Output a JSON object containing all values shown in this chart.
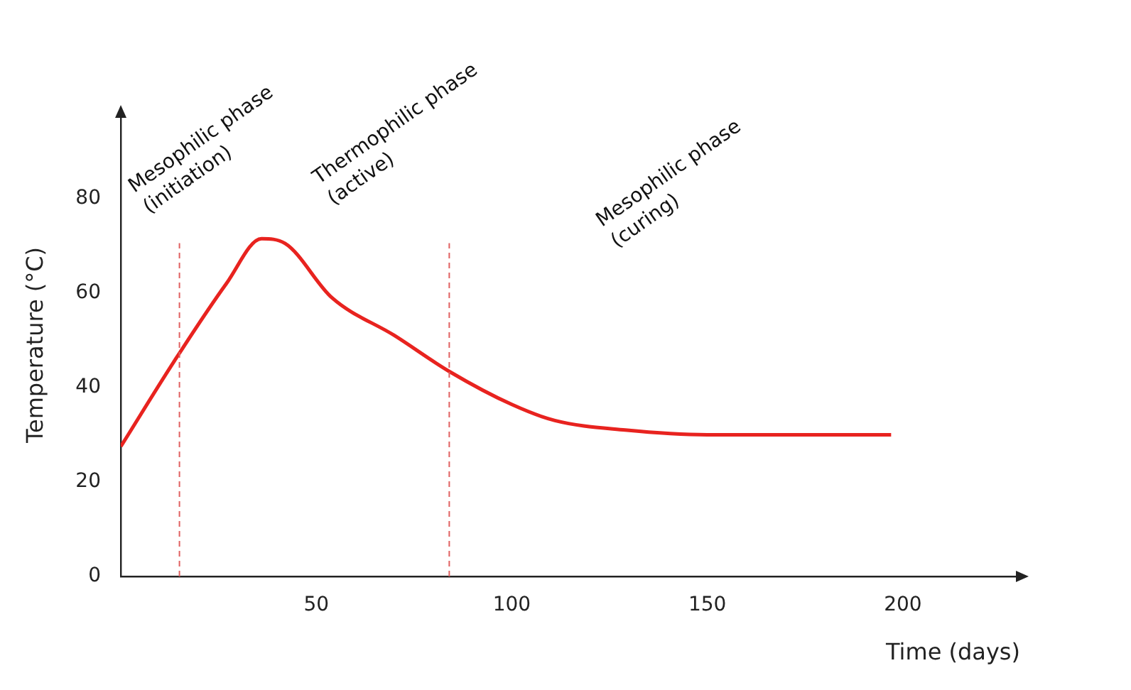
{
  "chart_data": {
    "type": "line",
    "xlabel": "Time (days)",
    "ylabel": "Temperature (°C)",
    "xlim": [
      0,
      230
    ],
    "xticks": [
      50,
      100,
      150,
      200
    ],
    "ylim": [
      0,
      98
    ],
    "yticks": [
      0,
      20,
      40,
      60,
      80
    ],
    "series": [
      {
        "color": "#e8231f",
        "x": [
          0,
          14,
          27,
          36,
          42,
          54,
          70,
          84,
          100,
          111,
          129,
          150,
          197
        ],
        "values": [
          27.5,
          46,
          62,
          71.5,
          70.5,
          59,
          51,
          43.4,
          36.4,
          33,
          31,
          30,
          30
        ]
      }
    ],
    "ref_lines": [
      {
        "axis": "x",
        "value": 15,
        "color": "#e06060",
        "line_style": "dashed"
      },
      {
        "axis": "x",
        "value": 84,
        "color": "#e06060",
        "line_style": "dashed"
      }
    ],
    "annotations": [
      "Mesophilic phase\n(initiation)",
      "Thermophilic phase\n(active)",
      "Mesophilic phase\n(curing)"
    ],
    "grid": false,
    "legend": false,
    "marker": "none",
    "line_style": "solid"
  }
}
